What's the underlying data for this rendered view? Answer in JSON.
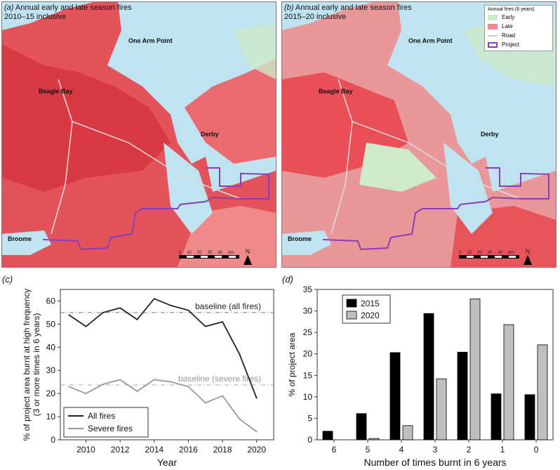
{
  "maps": [
    {
      "letter": "(a)",
      "title_line1": "Annual early and late season fires",
      "title_line2": "2010–15 inclusive"
    },
    {
      "letter": "(b)",
      "title_line1": "Annual early and late season fires",
      "title_line2": "2015–20 inclusive"
    }
  ],
  "towns": {
    "one_arm_point": "One Arm Point",
    "beagle_bay": "Beagle Bay",
    "derby": "Derby",
    "broome": "Broome"
  },
  "map_legend": {
    "title": "Annual fires (6 years)",
    "items": [
      {
        "label": "Early",
        "color": "#cdeacb"
      },
      {
        "label": "Late",
        "color": "#f08a8a"
      },
      {
        "label": "Road",
        "color": "#cccccc"
      },
      {
        "label": "Project",
        "color": "#8a3fb5"
      }
    ]
  },
  "scale": {
    "ticks": [
      "0",
      "10",
      "20",
      "30",
      "40"
    ],
    "unit": "km",
    "north": "N"
  },
  "colors": {
    "water": "#bfe3f0",
    "burn": "#e8424a",
    "early": "#cdeacb",
    "project": "#8a3fb5"
  },
  "chart_data": [
    {
      "letter": "(c)",
      "type": "line",
      "xlabel": "Year",
      "ylabel_line1": "% of project area burnt at high frequency",
      "ylabel_line2": "(3 or more times in 6 years)",
      "x": [
        2009,
        2010,
        2011,
        2012,
        2013,
        2014,
        2015,
        2016,
        2017,
        2018,
        2019,
        2020
      ],
      "xlim": [
        2008.5,
        2021
      ],
      "ylim": [
        0,
        65
      ],
      "xticks": [
        2010,
        2012,
        2014,
        2016,
        2018,
        2020
      ],
      "yticks": [
        0,
        10,
        20,
        30,
        40,
        50,
        60
      ],
      "series": [
        {
          "name": "All fires",
          "color": "#222222",
          "values": [
            54,
            49,
            55,
            57,
            52,
            61,
            58,
            56,
            49,
            51,
            37,
            18
          ]
        },
        {
          "name": "Severe fires",
          "color": "#999999",
          "values": [
            23,
            20,
            24,
            26,
            21,
            26,
            25,
            23,
            16,
            19,
            9,
            3.5
          ]
        }
      ],
      "baselines": [
        {
          "label": "baseline (all fires)",
          "value": 55,
          "color": "#777777"
        },
        {
          "label": "baseline (severe fires)",
          "value": 23.7,
          "color": "#aaaaaa"
        }
      ],
      "legend_position": "bottom-left"
    },
    {
      "letter": "(d)",
      "type": "bar",
      "xlabel": "Number of times burnt in 6 years",
      "ylabel": "% of project area",
      "categories": [
        "6",
        "5",
        "4",
        "3",
        "2",
        "1",
        "0"
      ],
      "ylim": [
        0,
        35
      ],
      "yticks": [
        0,
        5,
        10,
        15,
        20,
        25,
        30,
        35
      ],
      "series": [
        {
          "name": "2015",
          "color": "#000000",
          "values": [
            2,
            6.1,
            20.3,
            29.4,
            20.4,
            10.7,
            10.5
          ]
        },
        {
          "name": "2020",
          "color": "#bfbfbf",
          "values": [
            0,
            0.3,
            3.3,
            14.2,
            32.8,
            26.8,
            22.1
          ]
        }
      ],
      "legend_position": "top-left"
    }
  ]
}
